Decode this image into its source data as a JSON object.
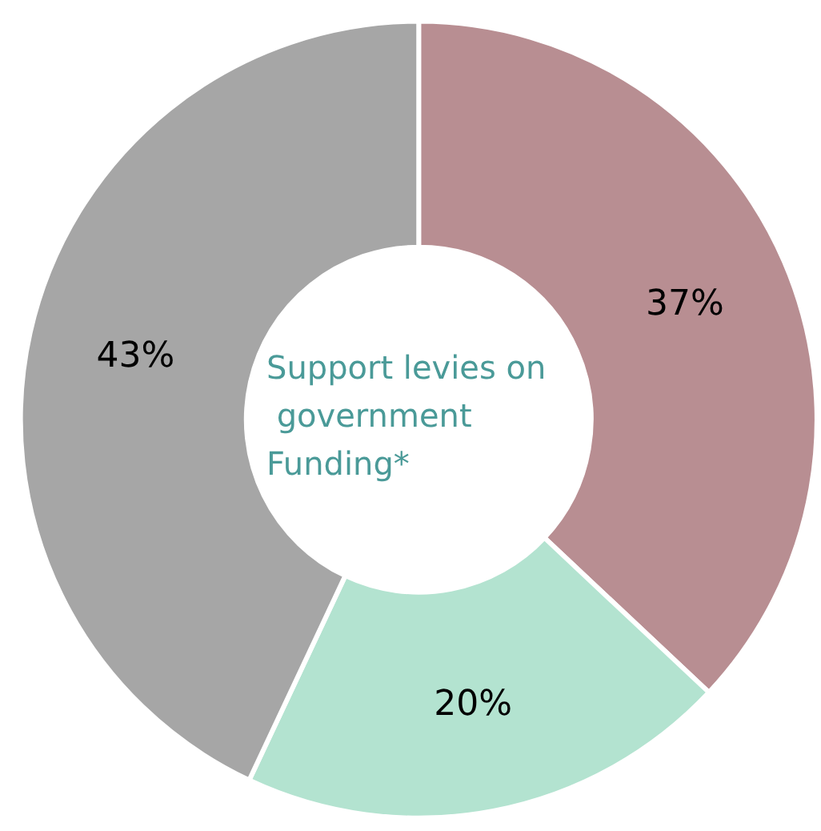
{
  "chart_data": {
    "type": "donut",
    "title": "Support levies on government Funding*",
    "categories": [
      null,
      null,
      null
    ],
    "values": [
      37,
      20,
      43
    ],
    "colors": [
      "#b88e92",
      "#b3e3d0",
      "#a6a6a6"
    ],
    "value_labels": [
      "37%",
      "20%",
      "43%"
    ]
  }
}
